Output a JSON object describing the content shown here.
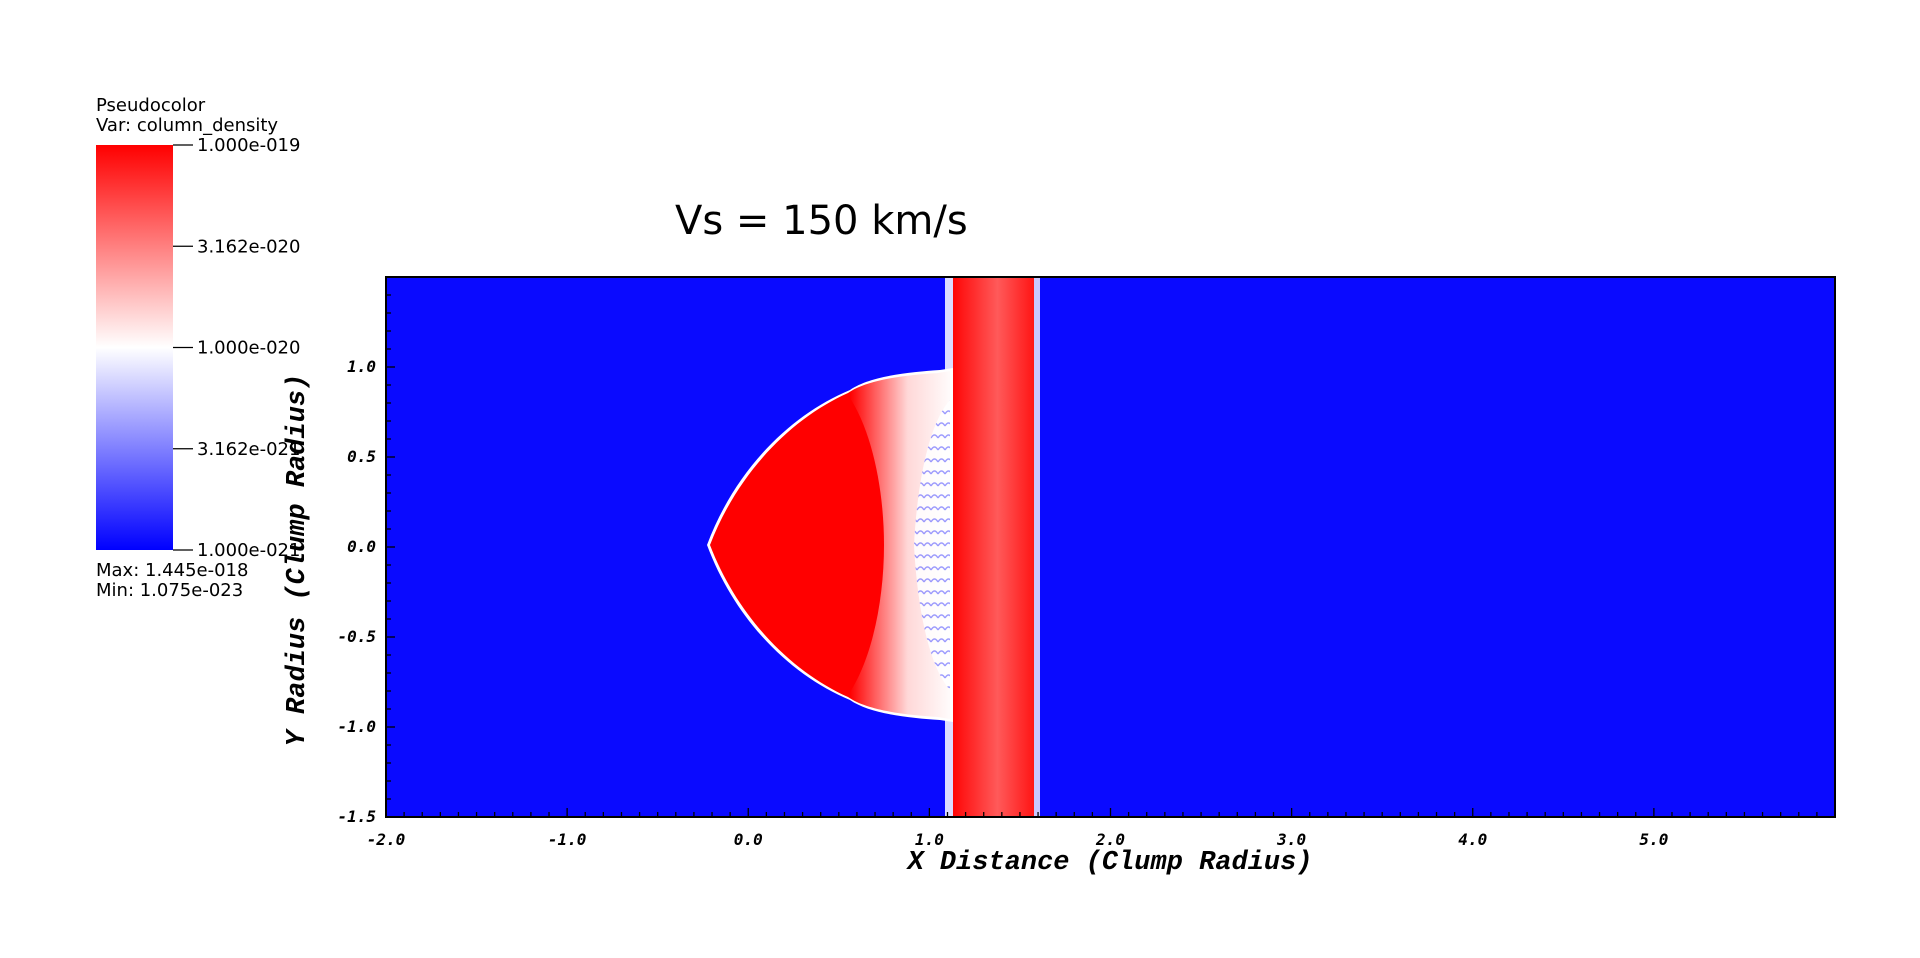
{
  "legend": {
    "plot_type": "Pseudocolor",
    "var_label": "Var: column_density",
    "max_label": "Max:  1.445e-018",
    "min_label": "Min:  1.075e-023",
    "tick_labels": [
      "1.000e-019",
      "3.162e-020",
      "1.000e-020",
      "3.162e-021",
      "1.000e-021"
    ],
    "colors": {
      "high": "#ff0000",
      "mid": "#ffffff",
      "low": "#0000ff"
    }
  },
  "chart_data": {
    "type": "heatmap",
    "title": "Vs = 150 km/s",
    "xlabel": "X Distance (Clump Radius)",
    "ylabel": "Y Radius (Clump Radius)",
    "xlim": [
      -2.0,
      6.0
    ],
    "ylim": [
      -1.5,
      1.5
    ],
    "xticks": [
      -2.0,
      -1.0,
      0.0,
      1.0,
      2.0,
      3.0,
      4.0,
      5.0
    ],
    "xtick_labels": [
      "-2.0",
      "-1.0",
      "0.0",
      "1.0",
      "2.0",
      "3.0",
      "4.0",
      "5.0"
    ],
    "yticks": [
      -1.5,
      -1.0,
      -0.5,
      0.0,
      0.5,
      1.0
    ],
    "ytick_labels": [
      "-1.5",
      "-1.0",
      "-0.5",
      "0.0",
      "0.5",
      "1.0"
    ],
    "colormap": [
      "#0000ff",
      "#ffffff",
      "#ff0000"
    ],
    "background_color": "#0a0aff",
    "features": {
      "clump_left_x": -0.22,
      "clump_center_x": 0.72,
      "clump_half_height": 0.97,
      "clump_right_x": 1.1,
      "shock_band": [
        1.1,
        1.6
      ],
      "shock_peak_band": [
        1.18,
        1.53
      ]
    }
  }
}
